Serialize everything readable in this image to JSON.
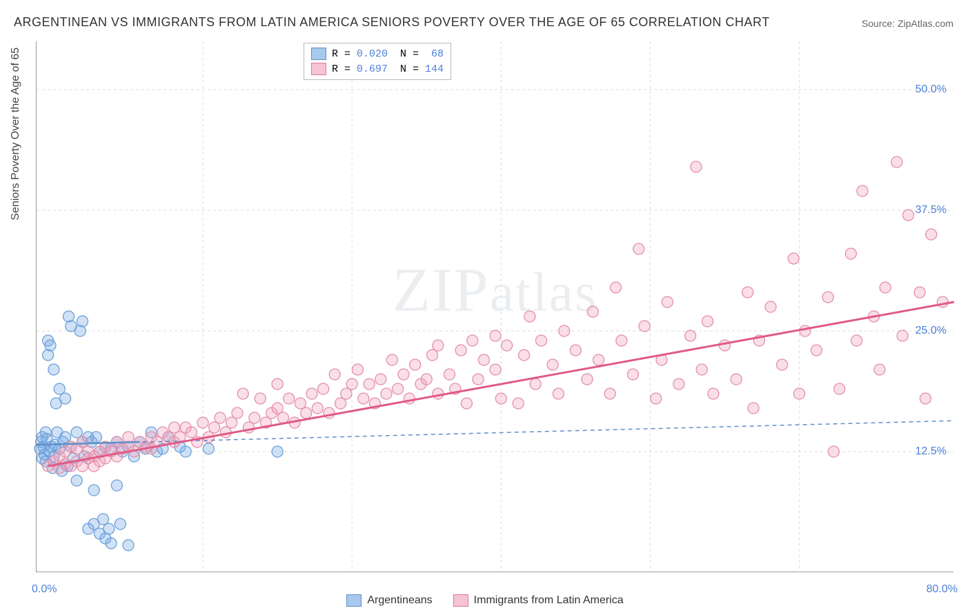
{
  "title": "ARGENTINEAN VS IMMIGRANTS FROM LATIN AMERICA SENIORS POVERTY OVER THE AGE OF 65 CORRELATION CHART",
  "source": "Source: ZipAtlas.com",
  "watermark": "ZIPatlas",
  "yaxis_title": "Seniors Poverty Over the Age of 65",
  "chart": {
    "type": "scatter",
    "xlim": [
      0,
      80
    ],
    "ylim": [
      0,
      55
    ],
    "x_ticks": [
      0,
      80
    ],
    "x_tick_labels": [
      "0.0%",
      "80.0%"
    ],
    "y_ticks": [
      12.5,
      25.0,
      37.5,
      50.0
    ],
    "y_tick_labels": [
      "12.5%",
      "25.0%",
      "37.5%",
      "50.0%"
    ],
    "v_grid_at": [
      14.5,
      27.5,
      40.5,
      53.5,
      66.5
    ],
    "background_color": "#ffffff",
    "grid_color": "#dddddd",
    "axis_color": "#999999",
    "marker_radius": 8,
    "marker_stroke_width": 1.3,
    "series": [
      {
        "name": "Argentineans",
        "fill": "rgba(120,170,230,0.35)",
        "stroke": "#6b9fd8",
        "swatch_fill": "#a8c9ec",
        "swatch_border": "#5e8fc8",
        "R": "0.020",
        "N": "68",
        "regression": {
          "x1": 0,
          "y1": 13.2,
          "x2": 80,
          "y2": 15.7,
          "color": "#5e8fc8",
          "dash": "6,5",
          "width": 1.5
        },
        "regression_solid": {
          "x1": 0,
          "y1": 13.2,
          "x2": 9,
          "y2": 13.5,
          "color": "#5e8fc8",
          "width": 2.5
        },
        "points": [
          [
            0.3,
            12.8
          ],
          [
            0.4,
            13.5
          ],
          [
            0.5,
            11.8
          ],
          [
            0.5,
            14.0
          ],
          [
            0.6,
            13.0
          ],
          [
            0.7,
            12.2
          ],
          [
            0.8,
            14.5
          ],
          [
            0.8,
            11.5
          ],
          [
            0.9,
            13.8
          ],
          [
            1.0,
            24.0
          ],
          [
            1.0,
            22.5
          ],
          [
            1.1,
            12.5
          ],
          [
            1.2,
            23.5
          ],
          [
            1.3,
            13.0
          ],
          [
            1.4,
            10.8
          ],
          [
            1.5,
            12.0
          ],
          [
            1.5,
            21.0
          ],
          [
            1.6,
            13.2
          ],
          [
            1.7,
            17.5
          ],
          [
            1.8,
            14.5
          ],
          [
            2.0,
            19.0
          ],
          [
            2.0,
            12.8
          ],
          [
            2.2,
            10.5
          ],
          [
            2.3,
            13.5
          ],
          [
            2.5,
            18.0
          ],
          [
            2.5,
            14.0
          ],
          [
            2.7,
            11.0
          ],
          [
            2.8,
            26.5
          ],
          [
            3.0,
            13.0
          ],
          [
            3.0,
            25.5
          ],
          [
            3.2,
            11.8
          ],
          [
            3.5,
            14.5
          ],
          [
            3.5,
            9.5
          ],
          [
            3.8,
            25.0
          ],
          [
            4.0,
            13.5
          ],
          [
            4.0,
            26.0
          ],
          [
            4.2,
            12.0
          ],
          [
            4.5,
            14.0
          ],
          [
            4.5,
            4.5
          ],
          [
            4.8,
            13.5
          ],
          [
            5.0,
            8.5
          ],
          [
            5.0,
            5.0
          ],
          [
            5.2,
            14.0
          ],
          [
            5.5,
            4.0
          ],
          [
            5.5,
            12.5
          ],
          [
            5.8,
            5.5
          ],
          [
            6.0,
            13.0
          ],
          [
            6.0,
            3.5
          ],
          [
            6.3,
            4.5
          ],
          [
            6.5,
            12.8
          ],
          [
            6.5,
            3.0
          ],
          [
            7.0,
            9.0
          ],
          [
            7.0,
            13.5
          ],
          [
            7.3,
            5.0
          ],
          [
            7.5,
            12.5
          ],
          [
            8.0,
            13.0
          ],
          [
            8.0,
            2.8
          ],
          [
            8.5,
            12.0
          ],
          [
            9.0,
            13.5
          ],
          [
            9.5,
            12.8
          ],
          [
            10.0,
            14.5
          ],
          [
            10.5,
            12.5
          ],
          [
            11.0,
            12.8
          ],
          [
            11.5,
            14.0
          ],
          [
            12.5,
            13.0
          ],
          [
            13.0,
            12.5
          ],
          [
            15.0,
            12.8
          ],
          [
            21.0,
            12.5
          ]
        ]
      },
      {
        "name": "Immigrants from Latin America",
        "fill": "rgba(240,160,190,0.35)",
        "stroke": "#e28fa8",
        "swatch_fill": "#f5c3d2",
        "swatch_border": "#d87a98",
        "R": "0.697",
        "N": "144",
        "regression": {
          "x1": 1,
          "y1": 11.0,
          "x2": 80,
          "y2": 28.0,
          "color": "#e05a85",
          "dash": "",
          "width": 3
        },
        "points": [
          [
            1.0,
            11.0
          ],
          [
            1.5,
            11.5
          ],
          [
            2.0,
            10.8
          ],
          [
            2.0,
            12.0
          ],
          [
            2.5,
            11.2
          ],
          [
            2.5,
            12.5
          ],
          [
            3.0,
            11.0
          ],
          [
            3.0,
            13.0
          ],
          [
            3.5,
            11.5
          ],
          [
            3.5,
            12.8
          ],
          [
            4.0,
            11.0
          ],
          [
            4.0,
            13.5
          ],
          [
            4.5,
            11.8
          ],
          [
            4.5,
            12.5
          ],
          [
            5.0,
            11.0
          ],
          [
            5.0,
            12.0
          ],
          [
            5.5,
            12.5
          ],
          [
            5.5,
            11.5
          ],
          [
            6.0,
            13.0
          ],
          [
            6.0,
            11.8
          ],
          [
            6.5,
            12.5
          ],
          [
            7.0,
            13.5
          ],
          [
            7.0,
            12.0
          ],
          [
            7.5,
            12.8
          ],
          [
            8.0,
            13.0
          ],
          [
            8.0,
            14.0
          ],
          [
            8.5,
            12.5
          ],
          [
            9.0,
            13.5
          ],
          [
            9.5,
            13.0
          ],
          [
            10.0,
            14.0
          ],
          [
            10.0,
            12.8
          ],
          [
            10.5,
            13.5
          ],
          [
            11.0,
            14.5
          ],
          [
            11.5,
            14.0
          ],
          [
            12.0,
            13.5
          ],
          [
            12.0,
            15.0
          ],
          [
            12.5,
            14.0
          ],
          [
            13.0,
            15.0
          ],
          [
            13.5,
            14.5
          ],
          [
            14.0,
            13.5
          ],
          [
            14.5,
            15.5
          ],
          [
            15.0,
            14.0
          ],
          [
            15.5,
            15.0
          ],
          [
            16.0,
            16.0
          ],
          [
            16.5,
            14.5
          ],
          [
            17.0,
            15.5
          ],
          [
            17.5,
            16.5
          ],
          [
            18.0,
            18.5
          ],
          [
            18.5,
            15.0
          ],
          [
            19.0,
            16.0
          ],
          [
            19.5,
            18.0
          ],
          [
            20.0,
            15.5
          ],
          [
            20.5,
            16.5
          ],
          [
            21.0,
            17.0
          ],
          [
            21.0,
            19.5
          ],
          [
            21.5,
            16.0
          ],
          [
            22.0,
            18.0
          ],
          [
            22.5,
            15.5
          ],
          [
            23.0,
            17.5
          ],
          [
            23.5,
            16.5
          ],
          [
            24.0,
            18.5
          ],
          [
            24.5,
            17.0
          ],
          [
            25.0,
            19.0
          ],
          [
            25.5,
            16.5
          ],
          [
            26.0,
            20.5
          ],
          [
            26.5,
            17.5
          ],
          [
            27.0,
            18.5
          ],
          [
            27.5,
            19.5
          ],
          [
            28.0,
            21.0
          ],
          [
            28.5,
            18.0
          ],
          [
            29.0,
            19.5
          ],
          [
            29.5,
            17.5
          ],
          [
            30.0,
            20.0
          ],
          [
            30.5,
            18.5
          ],
          [
            31.0,
            22.0
          ],
          [
            31.5,
            19.0
          ],
          [
            32.0,
            20.5
          ],
          [
            32.5,
            18.0
          ],
          [
            33.0,
            21.5
          ],
          [
            33.5,
            19.5
          ],
          [
            34.0,
            20.0
          ],
          [
            34.5,
            22.5
          ],
          [
            35.0,
            18.5
          ],
          [
            35.0,
            23.5
          ],
          [
            36.0,
            20.5
          ],
          [
            36.5,
            19.0
          ],
          [
            37.0,
            23.0
          ],
          [
            37.5,
            17.5
          ],
          [
            38.0,
            24.0
          ],
          [
            38.5,
            20.0
          ],
          [
            39.0,
            22.0
          ],
          [
            40.0,
            24.5
          ],
          [
            40.0,
            21.0
          ],
          [
            40.5,
            18.0
          ],
          [
            41.0,
            23.5
          ],
          [
            42.0,
            17.5
          ],
          [
            42.5,
            22.5
          ],
          [
            43.0,
            26.5
          ],
          [
            43.5,
            19.5
          ],
          [
            44.0,
            24.0
          ],
          [
            45.0,
            21.5
          ],
          [
            45.5,
            18.5
          ],
          [
            46.0,
            25.0
          ],
          [
            47.0,
            23.0
          ],
          [
            48.0,
            20.0
          ],
          [
            48.5,
            27.0
          ],
          [
            49.0,
            22.0
          ],
          [
            50.0,
            18.5
          ],
          [
            50.5,
            29.5
          ],
          [
            51.0,
            24.0
          ],
          [
            52.0,
            20.5
          ],
          [
            52.5,
            33.5
          ],
          [
            53.0,
            25.5
          ],
          [
            54.0,
            18.0
          ],
          [
            54.5,
            22.0
          ],
          [
            55.0,
            28.0
          ],
          [
            56.0,
            19.5
          ],
          [
            57.0,
            24.5
          ],
          [
            57.5,
            42.0
          ],
          [
            58.0,
            21.0
          ],
          [
            58.5,
            26.0
          ],
          [
            59.0,
            18.5
          ],
          [
            60.0,
            23.5
          ],
          [
            61.0,
            20.0
          ],
          [
            62.0,
            29.0
          ],
          [
            62.5,
            17.0
          ],
          [
            63.0,
            24.0
          ],
          [
            64.0,
            27.5
          ],
          [
            65.0,
            21.5
          ],
          [
            66.0,
            32.5
          ],
          [
            66.5,
            18.5
          ],
          [
            67.0,
            25.0
          ],
          [
            68.0,
            23.0
          ],
          [
            69.0,
            28.5
          ],
          [
            69.5,
            12.5
          ],
          [
            70.0,
            19.0
          ],
          [
            71.0,
            33.0
          ],
          [
            71.5,
            24.0
          ],
          [
            72.0,
            39.5
          ],
          [
            73.0,
            26.5
          ],
          [
            73.5,
            21.0
          ],
          [
            74.0,
            29.5
          ],
          [
            75.0,
            42.5
          ],
          [
            75.5,
            24.5
          ],
          [
            76.0,
            37.0
          ],
          [
            77.0,
            29.0
          ],
          [
            77.5,
            18.0
          ],
          [
            78.0,
            35.0
          ],
          [
            79.0,
            28.0
          ]
        ]
      }
    ]
  },
  "legend_bottom": [
    {
      "label": "Argentineans",
      "series_idx": 0
    },
    {
      "label": "Immigrants from Latin America",
      "series_idx": 1
    }
  ]
}
